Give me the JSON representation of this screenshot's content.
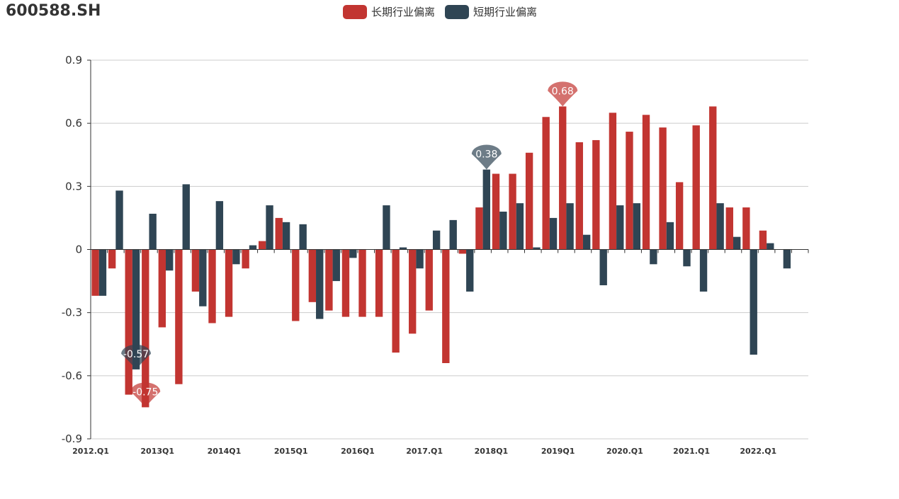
{
  "title": "600588.SH",
  "chart_data": {
    "type": "bar",
    "title": "600588.SH",
    "xlabel": "",
    "ylabel": "",
    "ylim": [
      -0.9,
      0.9
    ],
    "yticks": [
      -0.9,
      -0.6,
      -0.3,
      0,
      0.3,
      0.6,
      0.9
    ],
    "yticklabels": [
      "-0.9",
      "-0.6",
      "-0.3",
      "0",
      "0.3",
      "0.6",
      "0.9"
    ],
    "categories": [
      "2012.Q1",
      "2012Q2",
      "2012Q3",
      "2012Q4",
      "2013Q1",
      "2013Q2",
      "2013Q3",
      "2013Q4",
      "2014Q1",
      "2014Q2",
      "2014Q3",
      "2014Q4",
      "2015Q1",
      "2015Q2",
      "2015Q3",
      "2015Q4",
      "2016Q1",
      "2016Q2",
      "2016Q3",
      "2016Q4",
      "2017.Q1",
      "2017Q2",
      "2017Q3",
      "2017Q4",
      "2018Q1",
      "2018Q2",
      "2018Q3",
      "2018Q4",
      "2019Q1",
      "2019Q2",
      "2019Q3",
      "2019Q4",
      "2020.Q1",
      "2020Q2",
      "2020Q3",
      "2020Q4",
      "2021.Q1",
      "2021Q2",
      "2021Q3",
      "2021Q4",
      "2022.Q1",
      "2022Q2",
      "2022Q3"
    ],
    "xticklabels": [
      {
        "index": 0,
        "label": "2012.Q1"
      },
      {
        "index": 4,
        "label": "2013Q1"
      },
      {
        "index": 8,
        "label": "2014Q1"
      },
      {
        "index": 12,
        "label": "2015Q1"
      },
      {
        "index": 16,
        "label": "2016Q1"
      },
      {
        "index": 20,
        "label": "2017.Q1"
      },
      {
        "index": 24,
        "label": "2018Q1"
      },
      {
        "index": 28,
        "label": "2019Q1"
      },
      {
        "index": 32,
        "label": "2020.Q1"
      },
      {
        "index": 36,
        "label": "2021.Q1"
      },
      {
        "index": 40,
        "label": "2022.Q1"
      }
    ],
    "series": [
      {
        "name": "长期行业偏离",
        "color": "#c23531",
        "values": [
          -0.22,
          -0.09,
          -0.69,
          -0.75,
          -0.37,
          -0.64,
          -0.2,
          -0.35,
          -0.32,
          -0.09,
          0.04,
          0.15,
          -0.34,
          -0.25,
          -0.29,
          -0.32,
          -0.32,
          -0.32,
          -0.49,
          -0.4,
          -0.29,
          -0.54,
          -0.02,
          0.2,
          0.36,
          0.36,
          0.46,
          0.63,
          0.68,
          0.51,
          0.52,
          0.65,
          0.56,
          0.64,
          0.58,
          0.32,
          0.59,
          0.68,
          0.2,
          0.2,
          0.09,
          0,
          0
        ]
      },
      {
        "name": "短期行业偏离",
        "color": "#2f4554",
        "values": [
          -0.22,
          0.28,
          -0.57,
          0.17,
          -0.1,
          0.31,
          -0.27,
          0.23,
          -0.07,
          0.02,
          0.21,
          0.13,
          0.12,
          -0.33,
          -0.15,
          -0.04,
          0,
          0.21,
          0.01,
          -0.09,
          0.09,
          0.14,
          -0.2,
          0.38,
          0.18,
          0.22,
          0.01,
          0.15,
          0.22,
          0.07,
          -0.17,
          0.21,
          0.22,
          -0.07,
          0.13,
          -0.08,
          -0.2,
          0.22,
          0.06,
          -0.5,
          0.03,
          -0.09,
          0
        ]
      }
    ],
    "barsPerSeries": [
      41,
      42
    ],
    "markpoints": [
      {
        "series": 0,
        "index": 3,
        "label": "-0.75"
      },
      {
        "series": 0,
        "index": 28,
        "label": "0.68"
      },
      {
        "series": 1,
        "index": 2,
        "label": "-0.57"
      },
      {
        "series": 1,
        "index": 23,
        "label": "0.38"
      }
    ]
  },
  "legend": [
    {
      "label": "长期行业偏离",
      "color": "#c23531"
    },
    {
      "label": "短期行业偏离",
      "color": "#2f4554"
    }
  ]
}
